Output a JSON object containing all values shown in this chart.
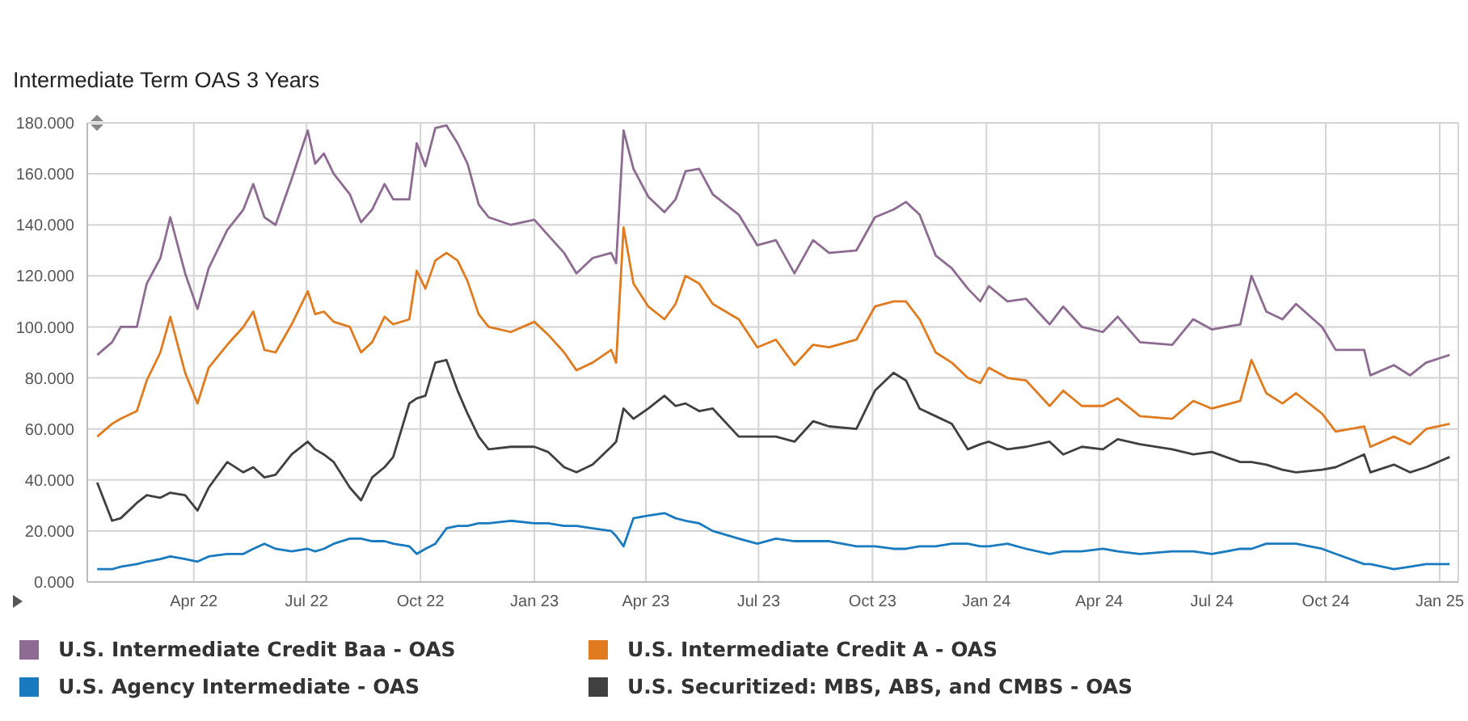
{
  "chart_data": {
    "type": "line",
    "title": "Intermediate Term OAS 3 Years",
    "x": [
      "2022-01-13",
      "2022-01-25",
      "2022-02-01",
      "2022-02-14",
      "2022-02-22",
      "2022-03-05",
      "2022-03-13",
      "2022-03-25",
      "2022-04-04",
      "2022-04-13",
      "2022-04-28",
      "2022-05-11",
      "2022-05-19",
      "2022-05-28",
      "2022-06-06",
      "2022-06-19",
      "2022-07-02",
      "2022-07-08",
      "2022-07-15",
      "2022-07-23",
      "2022-08-05",
      "2022-08-14",
      "2022-08-23",
      "2022-09-02",
      "2022-09-09",
      "2022-09-22",
      "2022-09-28",
      "2022-10-05",
      "2022-10-13",
      "2022-10-22",
      "2022-10-31",
      "2022-11-08",
      "2022-11-17",
      "2022-11-25",
      "2022-12-13",
      "2023-01-01",
      "2023-01-12",
      "2023-01-25",
      "2023-02-04",
      "2023-02-17",
      "2023-03-04",
      "2023-03-08",
      "2023-03-14",
      "2023-03-22",
      "2023-04-03",
      "2023-04-16",
      "2023-04-25",
      "2023-05-03",
      "2023-05-14",
      "2023-05-25",
      "2023-06-15",
      "2023-06-30",
      "2023-07-15",
      "2023-07-30",
      "2023-08-14",
      "2023-08-27",
      "2023-09-18",
      "2023-10-03",
      "2023-10-18",
      "2023-10-28",
      "2023-11-08",
      "2023-11-21",
      "2023-12-04",
      "2023-12-17",
      "2023-12-27",
      "2024-01-03",
      "2024-01-18",
      "2024-02-02",
      "2024-02-21",
      "2024-03-03",
      "2024-03-18",
      "2024-04-04",
      "2024-04-16",
      "2024-05-04",
      "2024-05-30",
      "2024-06-16",
      "2024-07-01",
      "2024-07-24",
      "2024-08-02",
      "2024-08-14",
      "2024-08-27",
      "2024-09-07",
      "2024-09-28",
      "2024-10-09",
      "2024-11-01",
      "2024-11-06",
      "2024-11-25",
      "2024-12-08",
      "2024-12-21",
      "2025-01-09"
    ],
    "series": [
      {
        "name": "U.S. Intermediate Credit Baa - OAS",
        "color": "#8e6b92",
        "values": [
          89,
          94,
          100,
          100,
          117,
          127,
          143,
          121,
          107,
          123,
          138,
          146,
          156,
          143,
          140,
          158,
          177,
          164,
          168,
          160,
          152,
          141,
          146,
          156,
          150,
          150,
          172,
          163,
          178,
          179,
          172,
          164,
          148,
          143,
          140,
          142,
          136,
          129,
          121,
          127,
          129,
          125,
          177,
          162,
          151,
          145,
          150,
          161,
          162,
          152,
          144,
          132,
          134,
          121,
          134,
          129,
          130,
          143,
          146,
          149,
          144,
          128,
          123,
          115,
          110,
          116,
          110,
          111,
          101,
          108,
          100,
          98,
          104,
          94,
          93,
          103,
          99,
          101,
          120,
          106,
          103,
          109,
          100,
          91,
          91,
          81,
          85,
          81,
          86,
          89
        ]
      },
      {
        "name": "U.S. Intermediate Credit A - OAS",
        "color": "#e07b1f",
        "values": [
          57,
          62,
          64,
          67,
          79,
          90,
          104,
          82,
          70,
          84,
          93,
          100,
          106,
          91,
          90,
          101,
          114,
          105,
          106,
          102,
          100,
          90,
          94,
          104,
          101,
          103,
          122,
          115,
          126,
          129,
          126,
          118,
          105,
          100,
          98,
          102,
          97,
          90,
          83,
          86,
          91,
          86,
          139,
          117,
          108,
          103,
          109,
          120,
          117,
          109,
          103,
          92,
          95,
          85,
          93,
          92,
          95,
          108,
          110,
          110,
          103,
          90,
          86,
          80,
          78,
          84,
          80,
          79,
          69,
          75,
          69,
          69,
          72,
          65,
          64,
          71,
          68,
          71,
          87,
          74,
          70,
          74,
          66,
          59,
          61,
          53,
          57,
          54,
          60,
          62
        ]
      },
      {
        "name": "U.S. Agency Intermediate - OAS",
        "color": "#1a7abf",
        "values": [
          5,
          5,
          6,
          7,
          8,
          9,
          10,
          9,
          8,
          10,
          11,
          11,
          13,
          15,
          13,
          12,
          13,
          12,
          13,
          15,
          17,
          17,
          16,
          16,
          15,
          14,
          11,
          13,
          15,
          21,
          22,
          22,
          23,
          23,
          24,
          23,
          23,
          22,
          22,
          21,
          20,
          18,
          14,
          25,
          26,
          27,
          25,
          24,
          23,
          20,
          17,
          15,
          17,
          16,
          16,
          16,
          14,
          14,
          13,
          13,
          14,
          14,
          15,
          15,
          14,
          14,
          15,
          13,
          11,
          12,
          12,
          13,
          12,
          11,
          12,
          12,
          11,
          13,
          13,
          15,
          15,
          15,
          13,
          11,
          7,
          7,
          5,
          6,
          7,
          7
        ]
      },
      {
        "name": "U.S. Securitized: MBS, ABS, and CMBS - OAS",
        "color": "#404040",
        "values": [
          39,
          24,
          25,
          31,
          34,
          33,
          35,
          34,
          28,
          37,
          47,
          43,
          45,
          41,
          42,
          50,
          55,
          52,
          50,
          47,
          37,
          32,
          41,
          45,
          49,
          70,
          72,
          73,
          86,
          87,
          75,
          66,
          57,
          52,
          53,
          53,
          51,
          45,
          43,
          46,
          53,
          55,
          68,
          64,
          68,
          73,
          69,
          70,
          67,
          68,
          57,
          57,
          57,
          55,
          63,
          61,
          60,
          75,
          82,
          79,
          68,
          65,
          62,
          52,
          54,
          55,
          52,
          53,
          55,
          50,
          53,
          52,
          56,
          54,
          52,
          50,
          51,
          47,
          47,
          46,
          44,
          43,
          44,
          45,
          50,
          43,
          46,
          43,
          45,
          49
        ]
      }
    ],
    "xlim": [
      "2022-01-05",
      "2025-01-16"
    ],
    "xticks": [
      {
        "value": "2022-04-01",
        "label": "Apr 22"
      },
      {
        "value": "2022-07-01",
        "label": "Jul 22"
      },
      {
        "value": "2022-10-01",
        "label": "Oct 22"
      },
      {
        "value": "2023-01-01",
        "label": "Jan 23"
      },
      {
        "value": "2023-04-01",
        "label": "Apr 23"
      },
      {
        "value": "2023-07-01",
        "label": "Jul 23"
      },
      {
        "value": "2023-10-01",
        "label": "Oct 23"
      },
      {
        "value": "2024-01-01",
        "label": "Jan 24"
      },
      {
        "value": "2024-04-01",
        "label": "Apr 24"
      },
      {
        "value": "2024-07-01",
        "label": "Jul 24"
      },
      {
        "value": "2024-10-01",
        "label": "Oct 24"
      },
      {
        "value": "2025-01-01",
        "label": "Jan 25"
      }
    ],
    "ylim": [
      0,
      180
    ],
    "yticks": [
      {
        "value": 0,
        "label": "0.000"
      },
      {
        "value": 20,
        "label": "20.000"
      },
      {
        "value": 40,
        "label": "40.000"
      },
      {
        "value": 60,
        "label": "60.000"
      },
      {
        "value": 80,
        "label": "80.000"
      },
      {
        "value": 100,
        "label": "100.000"
      },
      {
        "value": 120,
        "label": "120.000"
      },
      {
        "value": 140,
        "label": "140.000"
      },
      {
        "value": 160,
        "label": "160.000"
      },
      {
        "value": 180,
        "label": "180.000"
      }
    ],
    "grid": true,
    "legend": "bottom"
  }
}
